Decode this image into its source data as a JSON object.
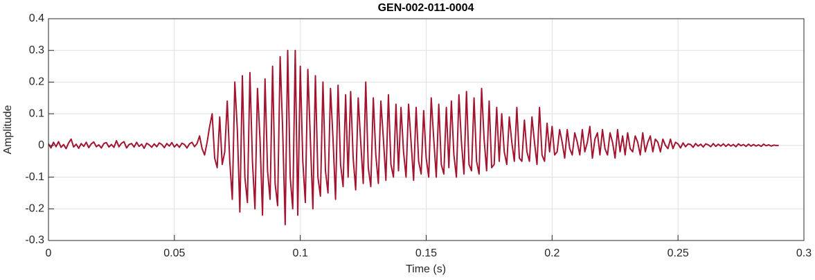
{
  "chart_data": {
    "type": "line",
    "title": "GEN-002-011-0004",
    "xlabel": "Time (s)",
    "ylabel": "Amplitude",
    "xlim": [
      0,
      0.3
    ],
    "ylim": [
      -0.3,
      0.4
    ],
    "xticks": [
      0,
      0.05,
      0.1,
      0.15,
      0.2,
      0.25,
      0.3
    ],
    "yticks": [
      -0.3,
      -0.2,
      -0.1,
      0,
      0.1,
      0.2,
      0.3,
      0.4
    ],
    "grid": true,
    "x": [
      0,
      0.001,
      0.002,
      0.003,
      0.004,
      0.005,
      0.006,
      0.007,
      0.008,
      0.009,
      0.01,
      0.011,
      0.012,
      0.013,
      0.014,
      0.015,
      0.016,
      0.017,
      0.018,
      0.019,
      0.02,
      0.021,
      0.022,
      0.023,
      0.024,
      0.025,
      0.026,
      0.027,
      0.028,
      0.029,
      0.03,
      0.031,
      0.032,
      0.033,
      0.034,
      0.035,
      0.036,
      0.037,
      0.038,
      0.039,
      0.04,
      0.041,
      0.042,
      0.043,
      0.044,
      0.045,
      0.046,
      0.047,
      0.048,
      0.049,
      0.05,
      0.051,
      0.052,
      0.053,
      0.054,
      0.055,
      0.056,
      0.057,
      0.058,
      0.059,
      0.06,
      0.061,
      0.062,
      0.063,
      0.064,
      0.065,
      0.066,
      0.067,
      0.068,
      0.069,
      0.07,
      0.071,
      0.072,
      0.073,
      0.074,
      0.075,
      0.076,
      0.077,
      0.078,
      0.079,
      0.08,
      0.081,
      0.082,
      0.083,
      0.084,
      0.085,
      0.086,
      0.087,
      0.088,
      0.089,
      0.09,
      0.091,
      0.092,
      0.093,
      0.094,
      0.095,
      0.096,
      0.097,
      0.098,
      0.099,
      0.1,
      0.101,
      0.102,
      0.103,
      0.104,
      0.105,
      0.106,
      0.107,
      0.108,
      0.109,
      0.11,
      0.111,
      0.112,
      0.113,
      0.114,
      0.115,
      0.116,
      0.117,
      0.118,
      0.119,
      0.12,
      0.121,
      0.122,
      0.123,
      0.124,
      0.125,
      0.126,
      0.127,
      0.128,
      0.129,
      0.13,
      0.131,
      0.132,
      0.133,
      0.134,
      0.135,
      0.136,
      0.137,
      0.138,
      0.139,
      0.14,
      0.141,
      0.142,
      0.143,
      0.144,
      0.145,
      0.146,
      0.147,
      0.148,
      0.149,
      0.15,
      0.151,
      0.152,
      0.153,
      0.154,
      0.155,
      0.156,
      0.157,
      0.158,
      0.159,
      0.16,
      0.161,
      0.162,
      0.163,
      0.164,
      0.165,
      0.166,
      0.167,
      0.168,
      0.169,
      0.17,
      0.171,
      0.172,
      0.173,
      0.174,
      0.175,
      0.176,
      0.177,
      0.178,
      0.179,
      0.18,
      0.181,
      0.182,
      0.183,
      0.184,
      0.185,
      0.186,
      0.187,
      0.188,
      0.189,
      0.19,
      0.191,
      0.192,
      0.193,
      0.194,
      0.195,
      0.196,
      0.197,
      0.198,
      0.199,
      0.2,
      0.201,
      0.202,
      0.203,
      0.204,
      0.205,
      0.206,
      0.207,
      0.208,
      0.209,
      0.21,
      0.211,
      0.212,
      0.213,
      0.214,
      0.215,
      0.216,
      0.217,
      0.218,
      0.219,
      0.22,
      0.221,
      0.222,
      0.223,
      0.224,
      0.225,
      0.226,
      0.227,
      0.228,
      0.229,
      0.23,
      0.231,
      0.232,
      0.233,
      0.234,
      0.235,
      0.236,
      0.237,
      0.238,
      0.239,
      0.24,
      0.241,
      0.242,
      0.243,
      0.244,
      0.245,
      0.246,
      0.247,
      0.248,
      0.249,
      0.25,
      0.251,
      0.252,
      0.253,
      0.254,
      0.255,
      0.256,
      0.257,
      0.258,
      0.259,
      0.26,
      0.261,
      0.262,
      0.263,
      0.264,
      0.265,
      0.266,
      0.267,
      0.268,
      0.269,
      0.27,
      0.271,
      0.272,
      0.273,
      0.274,
      0.275,
      0.276,
      0.277,
      0.278,
      0.279,
      0.28,
      0.281,
      0.282,
      0.283,
      0.284,
      0.285,
      0.286,
      0.287,
      0.288,
      0.289,
      0.29
    ],
    "series": [
      {
        "color": "#a2142f",
        "values": [
          0.005,
          -0.008,
          0.01,
          -0.004,
          0.012,
          -0.006,
          0.003,
          -0.01,
          0.008,
          0.02,
          -0.005,
          0.004,
          -0.009,
          0.006,
          -0.003,
          0.01,
          -0.007,
          0.005,
          0.011,
          -0.004,
          0.002,
          -0.008,
          0.006,
          0.009,
          -0.005,
          0.003,
          -0.006,
          0.015,
          -0.004,
          0.007,
          0.012,
          -0.008,
          0.003,
          0.006,
          -0.005,
          0.01,
          -0.003,
          0.004,
          -0.009,
          0.007,
          0.002,
          -0.006,
          0.005,
          -0.004,
          0.008,
          0.003,
          -0.007,
          0.006,
          -0.002,
          0.009,
          -0.005,
          0.004,
          -0.006,
          0.007,
          0.003,
          -0.008,
          0.005,
          0.01,
          -0.004,
          0.006,
          0.03,
          -0.01,
          -0.03,
          0.01,
          0.06,
          0.1,
          -0.04,
          -0.07,
          0.09,
          -0.06,
          -0.02,
          0.14,
          -0.05,
          -0.17,
          0.2,
          0.05,
          -0.21,
          0.22,
          -0.1,
          -0.18,
          0.23,
          -0.05,
          -0.2,
          0.18,
          0.02,
          -0.22,
          0.21,
          -0.08,
          -0.17,
          0.25,
          -0.12,
          -0.19,
          0.28,
          0.05,
          -0.25,
          0.3,
          -0.1,
          -0.2,
          0.3,
          -0.22,
          0.25,
          -0.05,
          -0.18,
          0.24,
          0.02,
          -0.2,
          0.22,
          -0.1,
          -0.16,
          0.2,
          -0.08,
          -0.15,
          0.18,
          0.02,
          -0.17,
          0.19,
          -0.06,
          -0.13,
          0.16,
          -0.1,
          0.17,
          -0.04,
          -0.14,
          0.15,
          0.01,
          -0.12,
          0.2,
          -0.07,
          -0.13,
          0.15,
          -0.03,
          -0.12,
          0.14,
          0.02,
          -0.11,
          0.16,
          -0.06,
          -0.1,
          0.13,
          -0.08,
          0.12,
          -0.02,
          -0.1,
          0.13,
          0.01,
          -0.11,
          0.12,
          -0.05,
          -0.09,
          0.11,
          -0.04,
          -0.1,
          0.15,
          0.02,
          -0.1,
          0.13,
          -0.06,
          -0.09,
          0.12,
          -0.07,
          0.14,
          -0.03,
          -0.1,
          0.16,
          0.01,
          -0.09,
          0.17,
          -0.06,
          -0.08,
          0.15,
          -0.05,
          -0.09,
          0.18,
          0.02,
          -0.08,
          0.14,
          -0.07,
          -0.06,
          0.12,
          -0.05,
          0.1,
          -0.02,
          -0.06,
          0.09,
          0.01,
          -0.05,
          0.12,
          -0.04,
          -0.05,
          0.08,
          -0.02,
          -0.05,
          0.09,
          0.01,
          -0.06,
          0.12,
          -0.03,
          -0.05,
          0.07,
          -0.02,
          0.06,
          -0.03,
          -0.02,
          0.05,
          0.01,
          -0.04,
          0.05,
          -0.01,
          -0.03,
          0.04,
          0.01,
          -0.03,
          0.05,
          -0.02,
          0.01,
          0.06,
          -0.04,
          0.02,
          0.04,
          -0.03,
          0.05,
          -0.01,
          -0.03,
          0.04,
          0.01,
          -0.04,
          0.05,
          -0.02,
          0.03,
          -0.03,
          0.04,
          -0.01,
          -0.02,
          0.03,
          0.01,
          -0.03,
          0.04,
          -0.02,
          0.01,
          0.03,
          -0.02,
          0.02,
          0.01,
          -0.02,
          0.02,
          0,
          -0.01,
          0.02,
          -0.01,
          0.01,
          0.005,
          -0.008,
          0.008,
          -0.004,
          0.005,
          0.003,
          -0.006,
          0.006,
          -0.002,
          0.004,
          -0.005,
          0.005,
          0.002,
          -0.004,
          0.006,
          -0.003,
          0.004,
          -0.002,
          0.005,
          -0.003,
          0.004,
          -0.002,
          0.003,
          -0.004,
          0.005,
          -0.001,
          0.003,
          -0.003,
          0.004,
          -0.002,
          0.003,
          -0.002,
          0.002,
          -0.003,
          0.004,
          -0.001,
          0.002,
          -0.002,
          0.001,
          0,
          0
        ]
      }
    ]
  }
}
